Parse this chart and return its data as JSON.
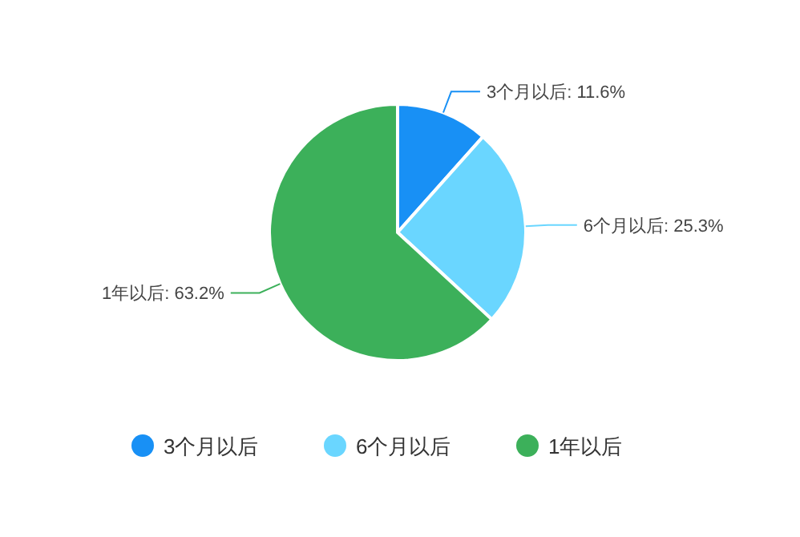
{
  "chart_data": {
    "type": "pie",
    "categories": [
      "3个月以后",
      "6个月以后",
      "1年以后"
    ],
    "values": [
      11.6,
      25.3,
      63.2
    ],
    "colors": [
      "#1890f5",
      "#6ad6ff",
      "#3cb05a"
    ],
    "value_labels": [
      "3个月以后: 11.6%",
      "6个月以后: 25.3%",
      "1年以后: 63.2%"
    ],
    "legend": "bottom"
  }
}
